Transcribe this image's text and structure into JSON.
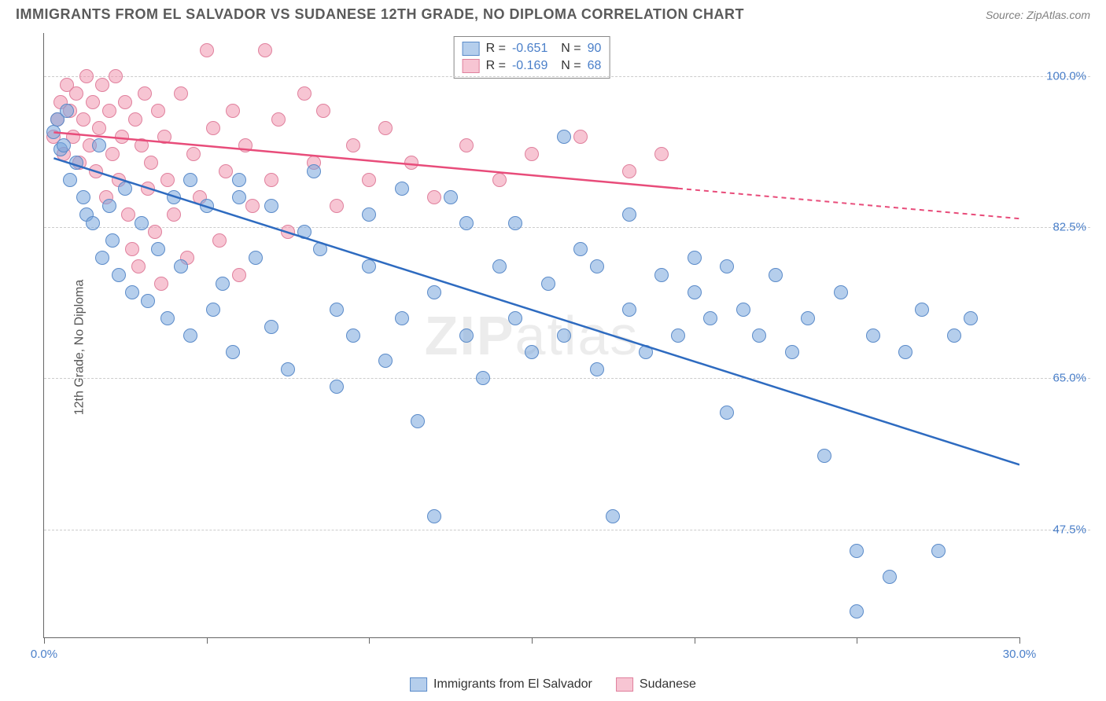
{
  "header": {
    "title": "IMMIGRANTS FROM EL SALVADOR VS SUDANESE 12TH GRADE, NO DIPLOMA CORRELATION CHART",
    "source": "Source: ZipAtlas.com"
  },
  "watermark": {
    "bold": "ZIP",
    "thin": "atlas"
  },
  "chart": {
    "type": "scatter",
    "y_axis_title": "12th Grade, No Diploma",
    "background_color": "#ffffff",
    "grid_color": "#cccccc",
    "axis_color": "#666666",
    "xlim": [
      0,
      30
    ],
    "ylim": [
      35,
      105
    ],
    "x_ticks": [
      0,
      5,
      10,
      15,
      20,
      25,
      30
    ],
    "x_tick_labels": {
      "0": "0.0%",
      "30": "30.0%"
    },
    "y_ticks": [
      47.5,
      65.0,
      82.5,
      100.0
    ],
    "y_tick_labels": [
      "47.5%",
      "65.0%",
      "82.5%",
      "100.0%"
    ],
    "tick_label_color": "#4a7fc9",
    "tick_label_fontsize": 15,
    "series": [
      {
        "name": "Immigrants from El Salvador",
        "color_fill": "rgba(120,165,220,0.55)",
        "color_stroke": "#5b8bc9",
        "trend_color": "#2e6bc0",
        "R": "-0.651",
        "N": "90",
        "marker_radius": 9,
        "trend": {
          "x1": 0.3,
          "y1": 90.5,
          "x2": 30,
          "y2": 55.0
        },
        "points": [
          [
            0.3,
            93.5
          ],
          [
            0.4,
            95.0
          ],
          [
            0.5,
            91.5
          ],
          [
            0.6,
            92.0
          ],
          [
            0.7,
            96.0
          ],
          [
            0.8,
            88.0
          ],
          [
            1.0,
            90.0
          ],
          [
            1.2,
            86.0
          ],
          [
            1.3,
            84.0
          ],
          [
            1.5,
            83.0
          ],
          [
            1.7,
            92.0
          ],
          [
            1.8,
            79.0
          ],
          [
            2.0,
            85.0
          ],
          [
            2.1,
            81.0
          ],
          [
            2.3,
            77.0
          ],
          [
            2.5,
            87.0
          ],
          [
            2.7,
            75.0
          ],
          [
            3.0,
            83.0
          ],
          [
            3.2,
            74.0
          ],
          [
            3.5,
            80.0
          ],
          [
            3.8,
            72.0
          ],
          [
            4.0,
            86.0
          ],
          [
            4.2,
            78.0
          ],
          [
            4.5,
            70.0
          ],
          [
            4.5,
            88.0
          ],
          [
            5.0,
            85.0
          ],
          [
            5.2,
            73.0
          ],
          [
            5.5,
            76.0
          ],
          [
            5.8,
            68.0
          ],
          [
            6.0,
            86.0
          ],
          [
            6.0,
            88.0
          ],
          [
            6.5,
            79.0
          ],
          [
            7.0,
            71.0
          ],
          [
            7.0,
            85.0
          ],
          [
            7.5,
            66.0
          ],
          [
            8.0,
            82.0
          ],
          [
            8.3,
            89.0
          ],
          [
            8.5,
            80.0
          ],
          [
            9.0,
            64.0
          ],
          [
            9.0,
            73.0
          ],
          [
            9.5,
            70.0
          ],
          [
            10.0,
            78.0
          ],
          [
            10.0,
            84.0
          ],
          [
            10.5,
            67.0
          ],
          [
            11.0,
            72.0
          ],
          [
            11.0,
            87.0
          ],
          [
            11.5,
            60.0
          ],
          [
            12.0,
            75.0
          ],
          [
            12.0,
            49.0
          ],
          [
            12.5,
            86.0
          ],
          [
            13.0,
            70.0
          ],
          [
            13.0,
            83.0
          ],
          [
            13.5,
            65.0
          ],
          [
            14.0,
            78.0
          ],
          [
            14.5,
            72.0
          ],
          [
            14.5,
            83.0
          ],
          [
            15.0,
            68.0
          ],
          [
            15.5,
            76.0
          ],
          [
            16.0,
            93.0
          ],
          [
            16.0,
            70.0
          ],
          [
            16.5,
            80.0
          ],
          [
            17.0,
            66.0
          ],
          [
            17.0,
            78.0
          ],
          [
            17.5,
            49.0
          ],
          [
            18.0,
            73.0
          ],
          [
            18.0,
            84.0
          ],
          [
            18.5,
            68.0
          ],
          [
            19.0,
            77.0
          ],
          [
            19.5,
            70.0
          ],
          [
            20.0,
            75.0
          ],
          [
            20.0,
            79.0
          ],
          [
            20.5,
            72.0
          ],
          [
            21.0,
            61.0
          ],
          [
            21.0,
            78.0
          ],
          [
            21.5,
            73.0
          ],
          [
            22.0,
            70.0
          ],
          [
            22.5,
            77.0
          ],
          [
            23.0,
            68.0
          ],
          [
            23.5,
            72.0
          ],
          [
            24.0,
            56.0
          ],
          [
            24.5,
            75.0
          ],
          [
            25.0,
            45.0
          ],
          [
            25.0,
            38.0
          ],
          [
            25.5,
            70.0
          ],
          [
            26.0,
            42.0
          ],
          [
            26.5,
            68.0
          ],
          [
            27.0,
            73.0
          ],
          [
            27.5,
            45.0
          ],
          [
            28.0,
            70.0
          ],
          [
            28.5,
            72.0
          ]
        ]
      },
      {
        "name": "Sudanese",
        "color_fill": "rgba(240,150,175,0.55)",
        "color_stroke": "#e0809d",
        "trend_color": "#e84c7a",
        "R": "-0.169",
        "N": "68",
        "marker_radius": 9,
        "trend_solid": {
          "x1": 0.3,
          "y1": 93.5,
          "x2": 19.5,
          "y2": 87.0
        },
        "trend_dashed": {
          "x1": 19.5,
          "y1": 87.0,
          "x2": 30,
          "y2": 83.5
        },
        "points": [
          [
            0.3,
            93.0
          ],
          [
            0.4,
            95.0
          ],
          [
            0.5,
            97.0
          ],
          [
            0.6,
            91.0
          ],
          [
            0.7,
            99.0
          ],
          [
            0.8,
            96.0
          ],
          [
            0.9,
            93.0
          ],
          [
            1.0,
            98.0
          ],
          [
            1.1,
            90.0
          ],
          [
            1.2,
            95.0
          ],
          [
            1.3,
            100.0
          ],
          [
            1.4,
            92.0
          ],
          [
            1.5,
            97.0
          ],
          [
            1.6,
            89.0
          ],
          [
            1.7,
            94.0
          ],
          [
            1.8,
            99.0
          ],
          [
            1.9,
            86.0
          ],
          [
            2.0,
            96.0
          ],
          [
            2.1,
            91.0
          ],
          [
            2.2,
            100.0
          ],
          [
            2.3,
            88.0
          ],
          [
            2.4,
            93.0
          ],
          [
            2.5,
            97.0
          ],
          [
            2.6,
            84.0
          ],
          [
            2.7,
            80.0
          ],
          [
            2.8,
            95.0
          ],
          [
            2.9,
            78.0
          ],
          [
            3.0,
            92.0
          ],
          [
            3.1,
            98.0
          ],
          [
            3.2,
            87.0
          ],
          [
            3.3,
            90.0
          ],
          [
            3.4,
            82.0
          ],
          [
            3.5,
            96.0
          ],
          [
            3.6,
            76.0
          ],
          [
            3.7,
            93.0
          ],
          [
            3.8,
            88.0
          ],
          [
            4.0,
            84.0
          ],
          [
            4.2,
            98.0
          ],
          [
            4.4,
            79.0
          ],
          [
            4.6,
            91.0
          ],
          [
            4.8,
            86.0
          ],
          [
            5.0,
            103.0
          ],
          [
            5.2,
            94.0
          ],
          [
            5.4,
            81.0
          ],
          [
            5.6,
            89.0
          ],
          [
            5.8,
            96.0
          ],
          [
            6.0,
            77.0
          ],
          [
            6.2,
            92.0
          ],
          [
            6.4,
            85.0
          ],
          [
            6.8,
            103.0
          ],
          [
            7.0,
            88.0
          ],
          [
            7.2,
            95.0
          ],
          [
            7.5,
            82.0
          ],
          [
            8.0,
            98.0
          ],
          [
            8.3,
            90.0
          ],
          [
            8.6,
            96.0
          ],
          [
            9.0,
            85.0
          ],
          [
            9.5,
            92.0
          ],
          [
            10.0,
            88.0
          ],
          [
            10.5,
            94.0
          ],
          [
            11.3,
            90.0
          ],
          [
            12.0,
            86.0
          ],
          [
            13.0,
            92.0
          ],
          [
            14.0,
            88.0
          ],
          [
            15.0,
            91.0
          ],
          [
            16.5,
            93.0
          ],
          [
            18.0,
            89.0
          ],
          [
            19.0,
            91.0
          ]
        ]
      }
    ],
    "legend_bottom": [
      {
        "label": "Immigrants from El Salvador",
        "fill": "rgba(120,165,220,0.55)",
        "stroke": "#5b8bc9"
      },
      {
        "label": "Sudanese",
        "fill": "rgba(240,150,175,0.55)",
        "stroke": "#e0809d"
      }
    ]
  }
}
